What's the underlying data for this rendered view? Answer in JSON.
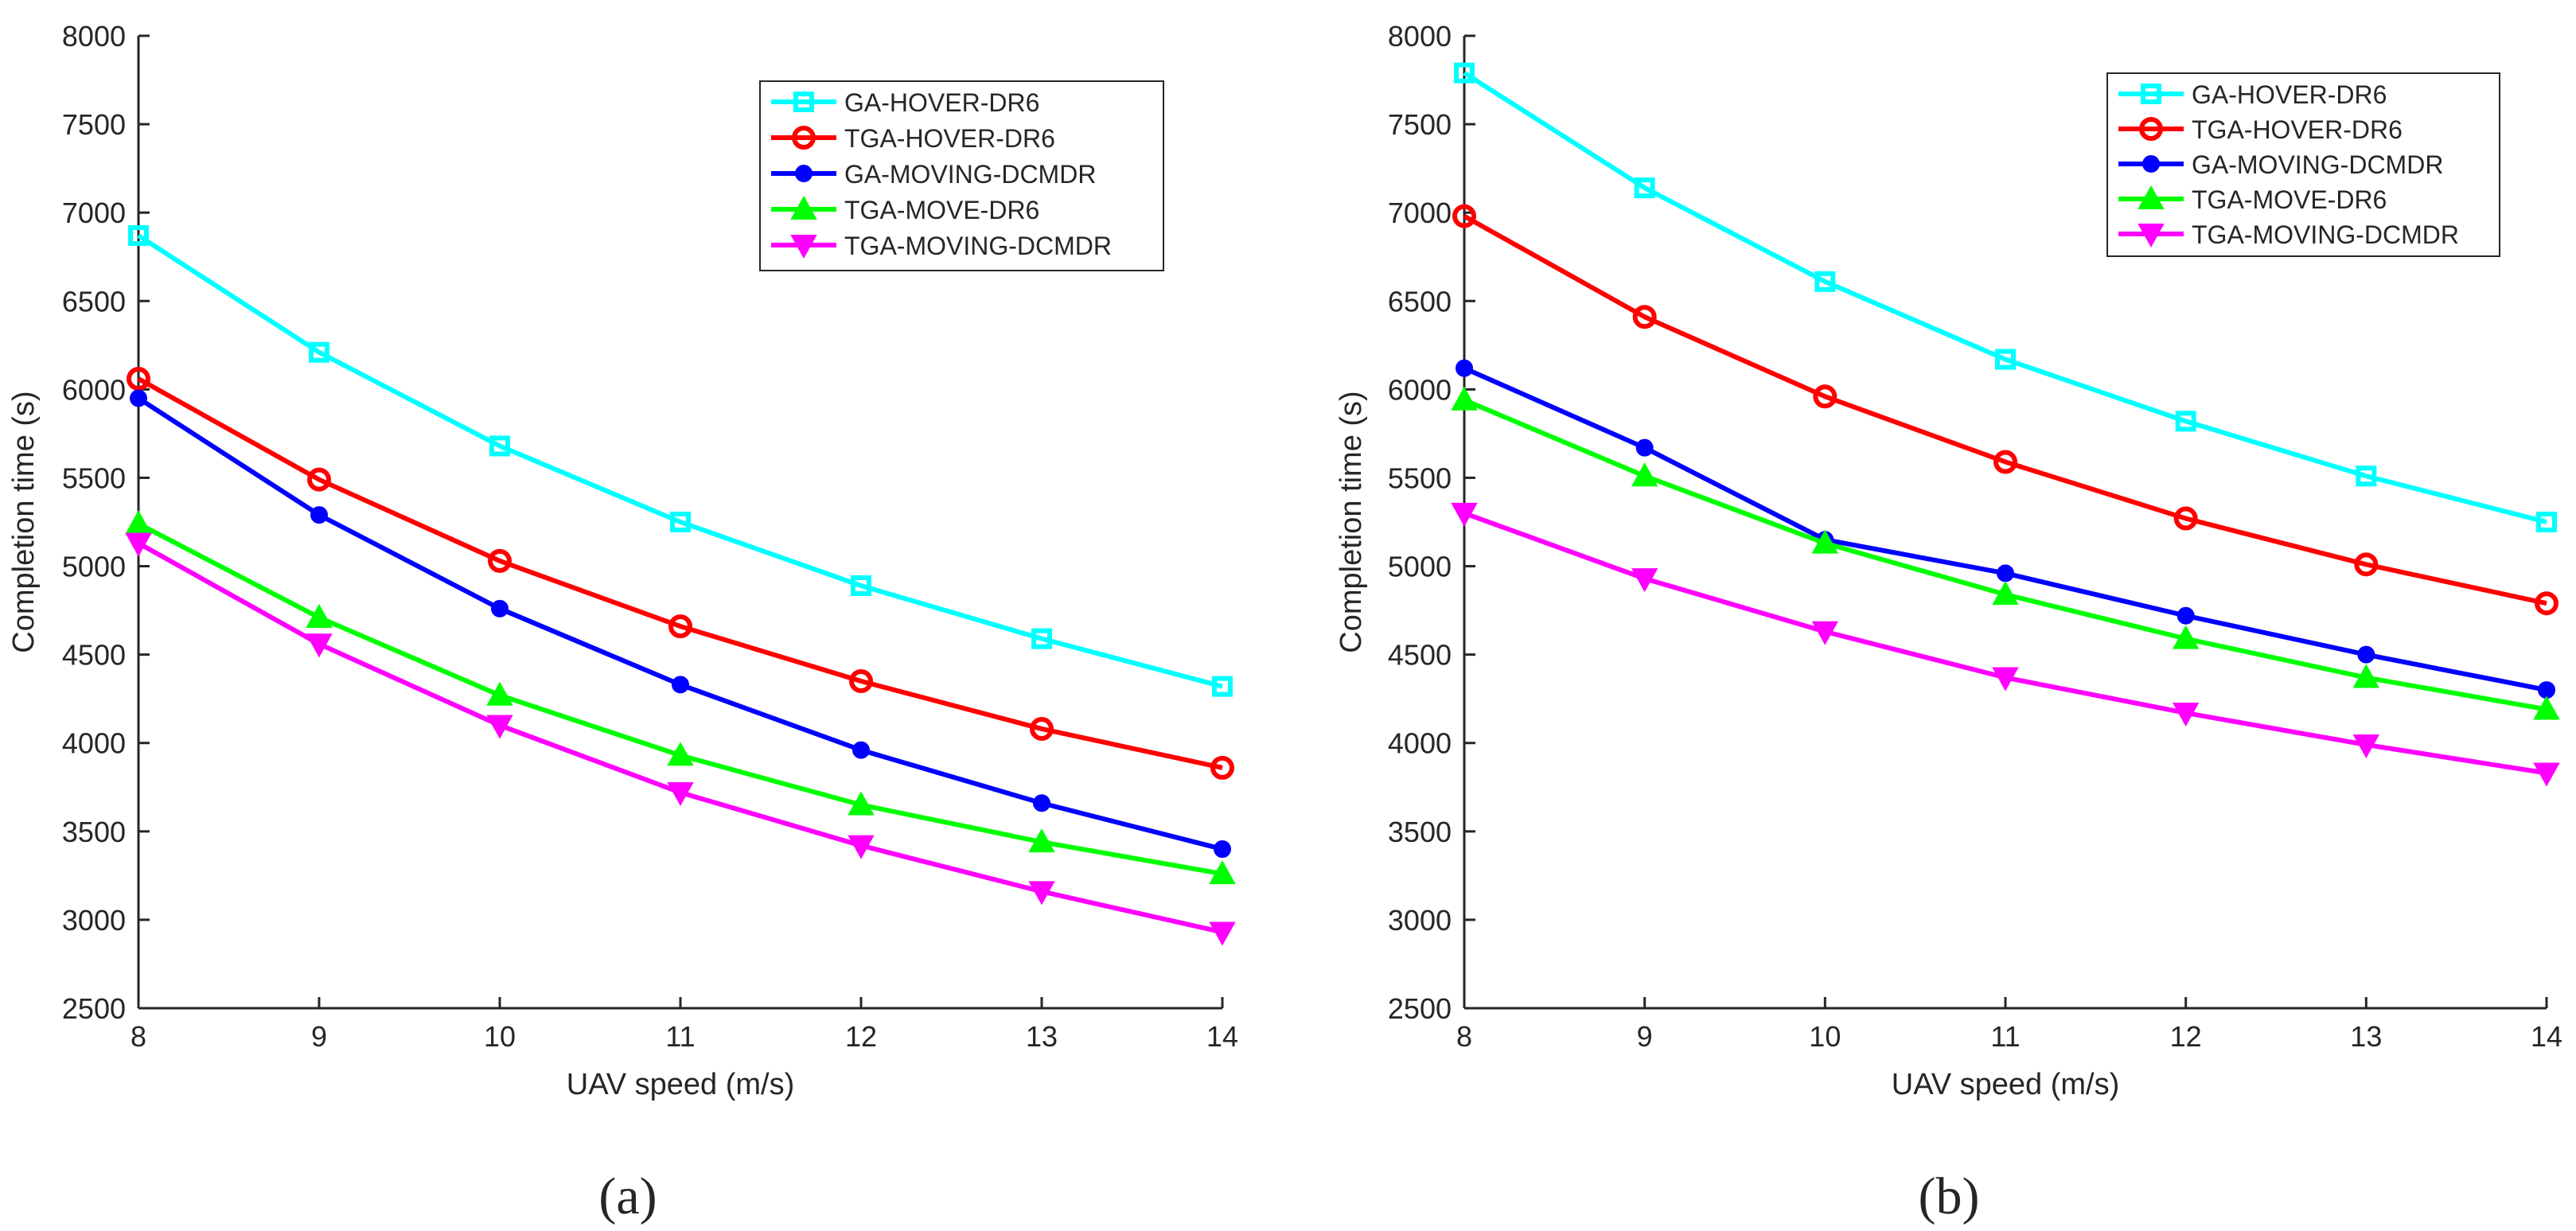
{
  "chart_data": [
    {
      "type": "line",
      "panel_label": "(a)",
      "xlabel": "UAV speed (m/s)",
      "ylabel": "Completion time (s)",
      "x": [
        8,
        9,
        10,
        11,
        12,
        13,
        14
      ],
      "xlim": [
        8,
        14
      ],
      "ylim": [
        2500,
        8000
      ],
      "xticks": [
        "8",
        "9",
        "10",
        "11",
        "12",
        "13",
        "14"
      ],
      "yticks": [
        "2500",
        "3000",
        "3500",
        "4000",
        "4500",
        "5000",
        "5500",
        "6000",
        "6500",
        "7000",
        "7500",
        "8000"
      ],
      "grid": false,
      "legend_position": "top-right",
      "series": [
        {
          "name": "GA-HOVER-DR6",
          "color": "#00FFFF",
          "marker": "square",
          "values": [
            6870,
            6210,
            5680,
            5250,
            4890,
            4590,
            4320
          ]
        },
        {
          "name": "TGA-HOVER-DR6",
          "color": "#FF0000",
          "marker": "circle",
          "values": [
            6060,
            5490,
            5030,
            4660,
            4350,
            4080,
            3860
          ]
        },
        {
          "name": "GA-MOVING-DCMDR",
          "color": "#0000FF",
          "marker": "dot",
          "values": [
            5950,
            5290,
            4760,
            4330,
            3960,
            3660,
            3400
          ]
        },
        {
          "name": "TGA-MOVE-DR6",
          "color": "#00FF00",
          "marker": "triangle-up",
          "values": [
            5240,
            4710,
            4270,
            3930,
            3650,
            3440,
            3260
          ]
        },
        {
          "name": "TGA-MOVING-DCMDR",
          "color": "#FF00FF",
          "marker": "triangle-down",
          "values": [
            5130,
            4560,
            4100,
            3720,
            3420,
            3160,
            2930
          ]
        }
      ]
    },
    {
      "type": "line",
      "panel_label": "(b)",
      "xlabel": "UAV speed (m/s)",
      "ylabel": "Completion time (s)",
      "x": [
        8,
        9,
        10,
        11,
        12,
        13,
        14
      ],
      "xlim": [
        8,
        14
      ],
      "ylim": [
        2500,
        8000
      ],
      "xticks": [
        "8",
        "9",
        "10",
        "11",
        "12",
        "13",
        "14"
      ],
      "yticks": [
        "2500",
        "3000",
        "3500",
        "4000",
        "4500",
        "5000",
        "5500",
        "6000",
        "6500",
        "7000",
        "7500",
        "8000"
      ],
      "grid": false,
      "legend_position": "top-right",
      "series": [
        {
          "name": "GA-HOVER-DR6",
          "color": "#00FFFF",
          "marker": "square",
          "values": [
            7790,
            7140,
            6610,
            6170,
            5820,
            5510,
            5250
          ]
        },
        {
          "name": "TGA-HOVER-DR6",
          "color": "#FF0000",
          "marker": "circle",
          "values": [
            6980,
            6410,
            5960,
            5590,
            5270,
            5010,
            4790
          ]
        },
        {
          "name": "GA-MOVING-DCMDR",
          "color": "#0000FF",
          "marker": "dot",
          "values": [
            6120,
            5670,
            5150,
            4960,
            4720,
            4500,
            4300
          ]
        },
        {
          "name": "TGA-MOVE-DR6",
          "color": "#00FF00",
          "marker": "triangle-up",
          "values": [
            5940,
            5510,
            5130,
            4840,
            4590,
            4370,
            4190
          ]
        },
        {
          "name": "TGA-MOVING-DCMDR",
          "color": "#FF00FF",
          "marker": "triangle-down",
          "values": [
            5300,
            4930,
            4630,
            4370,
            4170,
            3990,
            3830
          ]
        }
      ]
    }
  ]
}
